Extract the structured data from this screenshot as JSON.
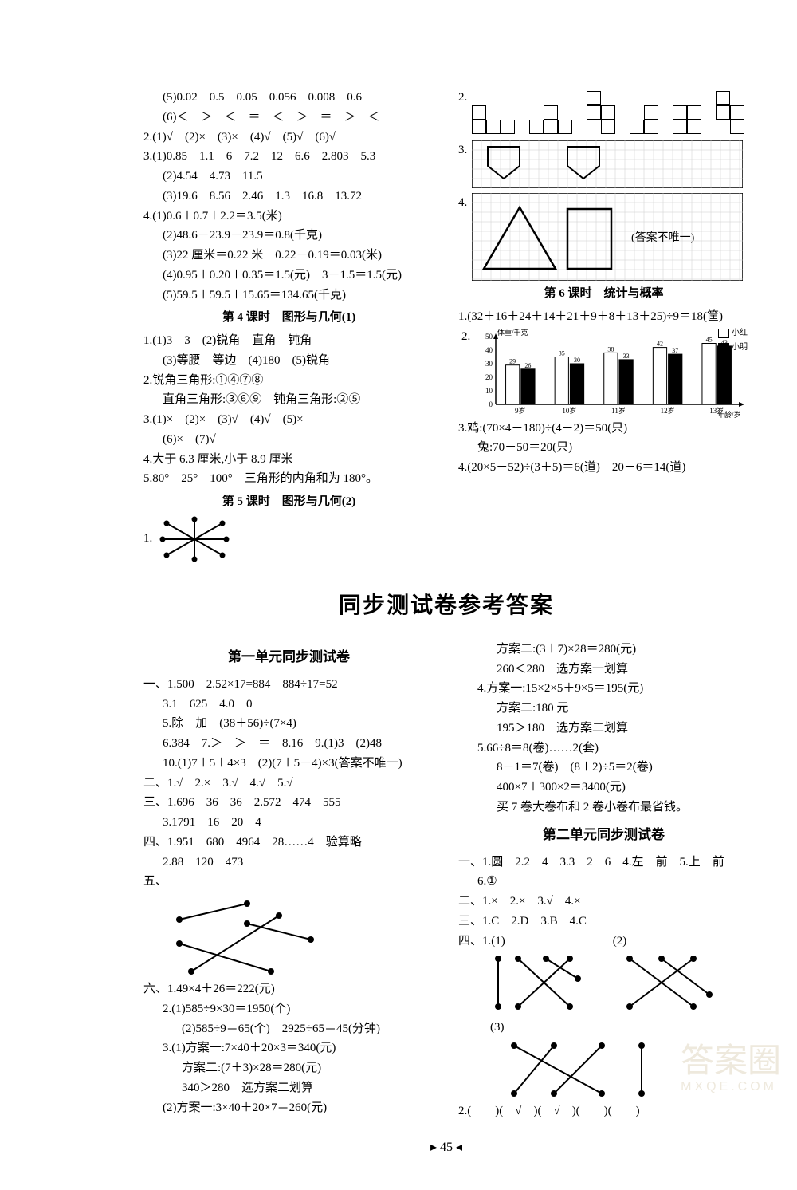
{
  "topLeft": {
    "lines": [
      {
        "cls": "indent1",
        "t": "(5)0.02　0.5　0.05　0.056　0.008　0.6"
      },
      {
        "cls": "indent1",
        "t": "(6)＜　＞　＜　＝　＜　＞　＝　＞　＜"
      },
      {
        "cls": "",
        "t": "2.(1)√　(2)×　(3)×　(4)√　(5)√　(6)√"
      },
      {
        "cls": "",
        "t": "3.(1)0.85　1.1　6　7.2　12　6.6　2.803　5.3"
      },
      {
        "cls": "indent1",
        "t": "(2)4.54　4.73　11.5"
      },
      {
        "cls": "indent1",
        "t": "(3)19.6　8.56　2.46　1.3　16.8　13.72"
      },
      {
        "cls": "",
        "t": "4.(1)0.6＋0.7＋2.2＝3.5(米)"
      },
      {
        "cls": "indent1",
        "t": "(2)48.6－23.9－23.9＝0.8(千克)"
      },
      {
        "cls": "indent1",
        "t": "(3)22 厘米＝0.22 米　0.22－0.19＝0.03(米)"
      },
      {
        "cls": "indent1",
        "t": "(4)0.95＋0.20＋0.35＝1.5(元)　3－1.5＝1.5(元)"
      },
      {
        "cls": "indent1",
        "t": "(5)59.5＋59.5＋15.65＝134.65(千克)"
      }
    ],
    "heading4": "第 4 课时　图形与几何(1)",
    "g4": [
      {
        "cls": "",
        "t": "1.(1)3　3　(2)锐角　直角　钝角"
      },
      {
        "cls": "indent1",
        "t": "(3)等腰　等边　(4)180　(5)锐角"
      },
      {
        "cls": "",
        "t": "2.锐角三角形:①④⑦⑧"
      },
      {
        "cls": "indent1",
        "t": "直角三角形:③⑥⑨　钝角三角形:②⑤"
      },
      {
        "cls": "",
        "t": "3.(1)×　(2)×　(3)√　(4)√　(5)×"
      },
      {
        "cls": "indent1",
        "t": "(6)×　(7)√"
      },
      {
        "cls": "",
        "t": "4.大于 6.3 厘米,小于 8.9 厘米"
      },
      {
        "cls": "",
        "t": "5.80°　25°　100°　三角形的内角和为 180°。"
      }
    ],
    "heading5": "第 5 课时　图形与几何(2)",
    "item1label": "1."
  },
  "topRight": {
    "q2label": "2.",
    "q3": {
      "label": "3."
    },
    "q4": {
      "label": "4.",
      "note": "(答案不唯一)"
    },
    "heading6": "第 6 课时　统计与概率",
    "g6": [
      {
        "cls": "",
        "t": "1.(32＋16＋24＋14＋21＋9＋8＋13＋25)÷9＝18(筐)"
      }
    ],
    "chart": {
      "label": "2.",
      "ylabel": "体重/千克",
      "xlabel": "年龄/岁",
      "ymax": 50,
      "ystep": 10,
      "categories": [
        "9岁",
        "10岁",
        "11岁",
        "12岁",
        "13岁"
      ],
      "series": [
        {
          "name": "小红",
          "color": "#ffffff",
          "values": [
            29,
            35,
            38,
            42,
            45
          ]
        },
        {
          "name": "小明",
          "color": "#000000",
          "values": [
            26,
            30,
            33,
            37,
            43
          ]
        }
      ],
      "value_labels": [
        [
          "29",
          "26"
        ],
        [
          "35",
          "30"
        ],
        [
          "38",
          "33"
        ],
        [
          "42",
          "37"
        ],
        [
          "45",
          "43"
        ]
      ]
    },
    "after": [
      {
        "cls": "",
        "t": "3.鸡:(70×4－180)÷(4－2)＝50(只)"
      },
      {
        "cls": "indent1",
        "t": "兔:70－50＝20(只)"
      },
      {
        "cls": "",
        "t": "4.(20×5－52)÷(3＋5)＝6(道)　20－6＝14(道)"
      }
    ]
  },
  "mainTitle": "同步测试卷参考答案",
  "bottomLeft": {
    "title": "第一单元同步测试卷",
    "lines": [
      {
        "cls": "",
        "t": "一、1.500　2.52×17=884　884÷17=52"
      },
      {
        "cls": "indent1",
        "t": "3.1　625　4.0　0"
      },
      {
        "cls": "indent1",
        "t": "5.除　加　(38＋56)÷(7×4)"
      },
      {
        "cls": "indent1",
        "t": "6.384　7.＞　＞　＝　8.16　9.(1)3　(2)48"
      },
      {
        "cls": "indent1",
        "t": "10.(1)7＋5＋4×3　(2)(7＋5－4)×3(答案不唯一)"
      },
      {
        "cls": "",
        "t": "二、1.√　2.×　3.√　4.√　5.√"
      },
      {
        "cls": "",
        "t": "三、1.696　36　36　2.572　474　555"
      },
      {
        "cls": "indent1",
        "t": "3.1791　16　20　4"
      },
      {
        "cls": "",
        "t": "四、1.951　680　4964　28……4　验算略"
      },
      {
        "cls": "indent1",
        "t": "2.88　120　473"
      },
      {
        "cls": "",
        "t": "五、"
      }
    ],
    "after": [
      {
        "cls": "",
        "t": "六、1.49×4＋26＝222(元)"
      },
      {
        "cls": "indent1",
        "t": "2.(1)585÷9×30＝1950(个)"
      },
      {
        "cls": "indent2",
        "t": "(2)585÷9＝65(个)　2925÷65＝45(分钟)"
      },
      {
        "cls": "indent1",
        "t": "3.(1)方案一:7×40＋20×3＝340(元)"
      },
      {
        "cls": "indent2",
        "t": "方案二:(7＋3)×28＝280(元)"
      },
      {
        "cls": "indent2",
        "t": "340＞280　选方案二划算"
      },
      {
        "cls": "indent1",
        "t": "(2)方案一:3×40＋20×7＝260(元)"
      }
    ]
  },
  "bottomRight": {
    "cont": [
      {
        "cls": "indent2",
        "t": "方案二:(3＋7)×28＝280(元)"
      },
      {
        "cls": "indent2",
        "t": "260＜280　选方案一划算"
      },
      {
        "cls": "indent1",
        "t": "4.方案一:15×2×5＋9×5＝195(元)"
      },
      {
        "cls": "indent2",
        "t": "方案二:180 元"
      },
      {
        "cls": "indent2",
        "t": "195＞180　选方案二划算"
      },
      {
        "cls": "indent1",
        "t": "5.66÷8＝8(卷)……2(套)"
      },
      {
        "cls": "indent2",
        "t": "8－1＝7(卷)　(8＋2)÷5＝2(卷)"
      },
      {
        "cls": "indent2",
        "t": "400×7＋300×2＝3400(元)"
      },
      {
        "cls": "indent2",
        "t": "买 7 卷大卷布和 2 卷小卷布最省钱。"
      }
    ],
    "title": "第二单元同步测试卷",
    "lines": [
      {
        "cls": "",
        "t": "一、1.圆　2.2　4　3.3　2　6　4.左　前　5.上　前"
      },
      {
        "cls": "indent1",
        "t": "6.①"
      },
      {
        "cls": "",
        "t": "二、1.×　2.×　3.√　4.×"
      },
      {
        "cls": "",
        "t": "三、1.C　2.D　3.B　4.C"
      },
      {
        "cls": "",
        "t": "四、1.(1)　　　　　　　　　(2)"
      }
    ],
    "q3label": "(3)",
    "lastline": "2.(　　)(　√　)(　√　)(　　)(　　)"
  },
  "pageNum": "45",
  "watermark": "答案圈",
  "watermark2": "MXQE.COM"
}
